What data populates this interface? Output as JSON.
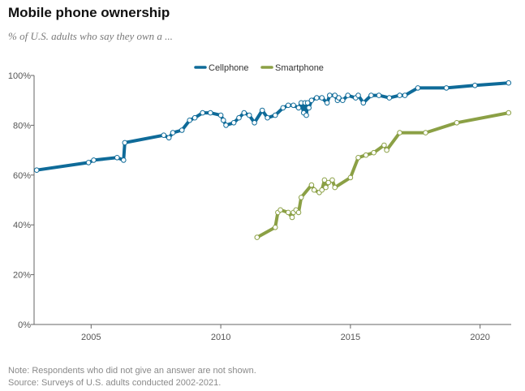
{
  "title": "Mobile phone ownership",
  "subtitle": "% of U.S. adults who say they own a ...",
  "notes": {
    "note": "Note: Respondents who did not give an answer are not shown.",
    "source": "Source: Surveys of U.S. adults conducted 2002-2021."
  },
  "colors": {
    "cellphone": "#0f6b99",
    "smartphone": "#8ba045",
    "axis": "#666666"
  },
  "chart_data": {
    "type": "line",
    "title": "Mobile phone ownership",
    "subtitle": "% of U.S. adults who say they own a ...",
    "xlabel": "",
    "ylabel": "",
    "xlim": [
      2002.8,
      2021.2
    ],
    "ylim": [
      0,
      100
    ],
    "x_ticks": [
      2005,
      2010,
      2015,
      2020
    ],
    "y_ticks": [
      0,
      20,
      40,
      60,
      80,
      100
    ],
    "y_tick_labels": [
      "0%",
      "20%",
      "40%",
      "60%",
      "80%",
      "100%"
    ],
    "legend_position": "top",
    "grid": false,
    "series": [
      {
        "name": "Cellphone",
        "color": "#0f6b99",
        "points": [
          [
            2002.9,
            62
          ],
          [
            2004.9,
            65
          ],
          [
            2005.1,
            66
          ],
          [
            2006.0,
            67
          ],
          [
            2006.25,
            66
          ],
          [
            2006.3,
            73
          ],
          [
            2007.8,
            76
          ],
          [
            2008.0,
            75
          ],
          [
            2008.15,
            77
          ],
          [
            2008.5,
            78
          ],
          [
            2008.8,
            82
          ],
          [
            2009.0,
            83
          ],
          [
            2009.3,
            85
          ],
          [
            2009.6,
            85
          ],
          [
            2010.0,
            84
          ],
          [
            2010.1,
            82
          ],
          [
            2010.2,
            80
          ],
          [
            2010.5,
            81
          ],
          [
            2010.7,
            83
          ],
          [
            2010.9,
            85
          ],
          [
            2011.1,
            84
          ],
          [
            2011.3,
            81
          ],
          [
            2011.6,
            86
          ],
          [
            2011.8,
            83
          ],
          [
            2012.1,
            84
          ],
          [
            2012.4,
            87
          ],
          [
            2012.6,
            88
          ],
          [
            2012.8,
            88
          ],
          [
            2013.0,
            87
          ],
          [
            2013.1,
            89
          ],
          [
            2013.2,
            85
          ],
          [
            2013.25,
            89
          ],
          [
            2013.3,
            84
          ],
          [
            2013.35,
            89
          ],
          [
            2013.4,
            87
          ],
          [
            2013.5,
            90
          ],
          [
            2013.7,
            91
          ],
          [
            2013.9,
            91
          ],
          [
            2014.1,
            89
          ],
          [
            2014.2,
            92
          ],
          [
            2014.4,
            92
          ],
          [
            2014.5,
            90
          ],
          [
            2014.55,
            91
          ],
          [
            2014.7,
            90
          ],
          [
            2014.9,
            92
          ],
          [
            2015.2,
            91
          ],
          [
            2015.3,
            92
          ],
          [
            2015.5,
            89
          ],
          [
            2015.8,
            92
          ],
          [
            2016.1,
            92
          ],
          [
            2016.5,
            91
          ],
          [
            2016.9,
            92
          ],
          [
            2017.1,
            92
          ],
          [
            2017.6,
            95
          ],
          [
            2018.7,
            95
          ],
          [
            2019.8,
            96
          ],
          [
            2021.1,
            97
          ]
        ]
      },
      {
        "name": "Smartphone",
        "color": "#8ba045",
        "points": [
          [
            2011.4,
            35
          ],
          [
            2012.1,
            39
          ],
          [
            2012.2,
            45
          ],
          [
            2012.3,
            46
          ],
          [
            2012.6,
            45
          ],
          [
            2012.75,
            43
          ],
          [
            2012.8,
            45
          ],
          [
            2012.9,
            46
          ],
          [
            2013.0,
            45
          ],
          [
            2013.1,
            51
          ],
          [
            2013.5,
            56
          ],
          [
            2013.6,
            54
          ],
          [
            2013.8,
            53
          ],
          [
            2013.9,
            54
          ],
          [
            2014.0,
            58
          ],
          [
            2014.05,
            55
          ],
          [
            2014.15,
            57
          ],
          [
            2014.3,
            58
          ],
          [
            2014.4,
            55
          ],
          [
            2015.0,
            59
          ],
          [
            2015.3,
            67
          ],
          [
            2015.6,
            68
          ],
          [
            2015.9,
            69
          ],
          [
            2016.3,
            72
          ],
          [
            2016.4,
            70
          ],
          [
            2016.9,
            77
          ],
          [
            2017.9,
            77
          ],
          [
            2019.1,
            81
          ],
          [
            2021.1,
            85
          ]
        ]
      }
    ]
  }
}
